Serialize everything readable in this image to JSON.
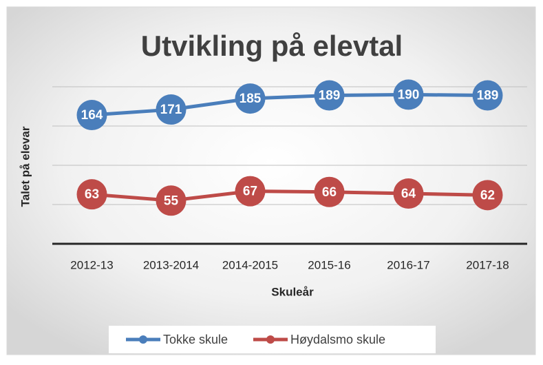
{
  "chart_data": {
    "type": "line",
    "title": "Utvikling på elevtal",
    "x_label": "Skuleår",
    "y_label": "Talet på elevar",
    "categories": [
      "2012-13",
      "2013-2014",
      "2014-2015",
      "2015-16",
      "2016-17",
      "2017-18"
    ],
    "series": [
      {
        "name": "Tokke skule",
        "color": "#4a7ebb",
        "values": [
          164,
          171,
          185,
          189,
          190,
          189
        ]
      },
      {
        "name": "Høydalsmo skule",
        "color": "#be4b48",
        "values": [
          63,
          55,
          67,
          66,
          64,
          62
        ]
      }
    ],
    "ylim": [
      0,
      200
    ],
    "yticks": [
      0,
      50,
      100,
      150,
      200
    ],
    "grid": true,
    "legend": "bottom"
  }
}
